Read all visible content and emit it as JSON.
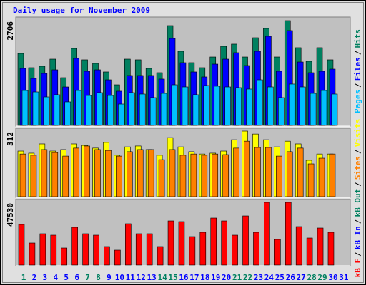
{
  "title": "Daily usage for November 2009",
  "separator": "/",
  "chart_data": [
    {
      "type": "bar",
      "ylim": [
        0,
        2706
      ],
      "yticks": [
        2706
      ],
      "series": [
        {
          "name": "Hits",
          "color": "#008060",
          "values": [
            1859,
            1491,
            1528,
            1712,
            1233,
            1988,
            1694,
            1602,
            1381,
            1049,
            1712,
            1694,
            1473,
            1362,
            2577,
            1915,
            1620,
            1491,
            1767,
            2043,
            2099,
            1767,
            2264,
            2504,
            1767,
            2706,
            2007,
            1657,
            2007,
            1694,
            null
          ]
        },
        {
          "name": "Files",
          "color": "#0000ff",
          "values": [
            1473,
            1215,
            1344,
            1436,
            994,
            1731,
            1399,
            1436,
            1178,
            884,
            1289,
            1289,
            1289,
            1197,
            2246,
            1620,
            1381,
            1252,
            1583,
            1712,
            1878,
            1546,
            1915,
            2301,
            1399,
            2449,
            1638,
            1362,
            1399,
            1454,
            null
          ]
        },
        {
          "name": "Pages",
          "color": "#00c0ff",
          "values": [
            902,
            865,
            736,
            792,
            608,
            902,
            773,
            847,
            773,
            552,
            847,
            810,
            718,
            828,
            1049,
            994,
            792,
            1031,
            1013,
            994,
            976,
            939,
            1178,
            994,
            718,
            1068,
            994,
            828,
            902,
            810,
            null
          ]
        }
      ]
    },
    {
      "type": "bar",
      "ylim": [
        0,
        312
      ],
      "yticks": [
        312
      ],
      "series": [
        {
          "name": "Visits",
          "color": "#ffff00",
          "values": [
            217,
            207,
            251,
            217,
            224,
            251,
            244,
            231,
            258,
            197,
            237,
            241,
            224,
            197,
            281,
            237,
            214,
            203,
            207,
            217,
            271,
            312,
            298,
            271,
            237,
            264,
            251,
            173,
            203,
            203,
            null
          ]
        },
        {
          "name": "Sites",
          "color": "#ff8000",
          "values": [
            203,
            197,
            224,
            210,
            193,
            231,
            241,
            224,
            220,
            193,
            214,
            224,
            224,
            176,
            224,
            197,
            203,
            197,
            203,
            200,
            231,
            264,
            234,
            234,
            193,
            214,
            231,
            156,
            183,
            203,
            null
          ]
        }
      ]
    },
    {
      "type": "bar",
      "ylim": [
        0,
        47530
      ],
      "yticks": [
        47530
      ],
      "series": [
        {
          "name": "kB F",
          "color": "#ff0000",
          "values": [
            30780,
            16740,
            23760,
            22680,
            12960,
            28620,
            23760,
            22680,
            14040,
            11340,
            31320,
            23760,
            23760,
            14040,
            33480,
            32940,
            21600,
            24840,
            35640,
            33480,
            22680,
            37260,
            24840,
            47530,
            19440,
            47530,
            29160,
            20520,
            28080,
            24840,
            null
          ]
        }
      ],
      "labels": [
        {
          "name": "kB In",
          "color": "#0000ff"
        },
        {
          "name": "kB Out",
          "color": "#008060"
        }
      ],
      "categories": [
        "1",
        "2",
        "3",
        "4",
        "5",
        "6",
        "7",
        "8",
        "9",
        "10",
        "11",
        "12",
        "13",
        "14",
        "15",
        "16",
        "17",
        "18",
        "19",
        "20",
        "21",
        "22",
        "23",
        "24",
        "25",
        "26",
        "27",
        "28",
        "29",
        "30",
        "31"
      ],
      "category_colors": [
        "#008060",
        "#0000ff",
        "#0000ff",
        "#0000ff",
        "#0000ff",
        "#0000ff",
        "#008060",
        "#008060",
        "#0000ff",
        "#0000ff",
        "#0000ff",
        "#0000ff",
        "#0000ff",
        "#008060",
        "#008060",
        "#0000ff",
        "#0000ff",
        "#0000ff",
        "#0000ff",
        "#0000ff",
        "#008060",
        "#008060",
        "#0000ff",
        "#0000ff",
        "#0000ff",
        "#0000ff",
        "#0000ff",
        "#008060",
        "#008060",
        "#0000ff",
        "#0000ff"
      ]
    }
  ]
}
